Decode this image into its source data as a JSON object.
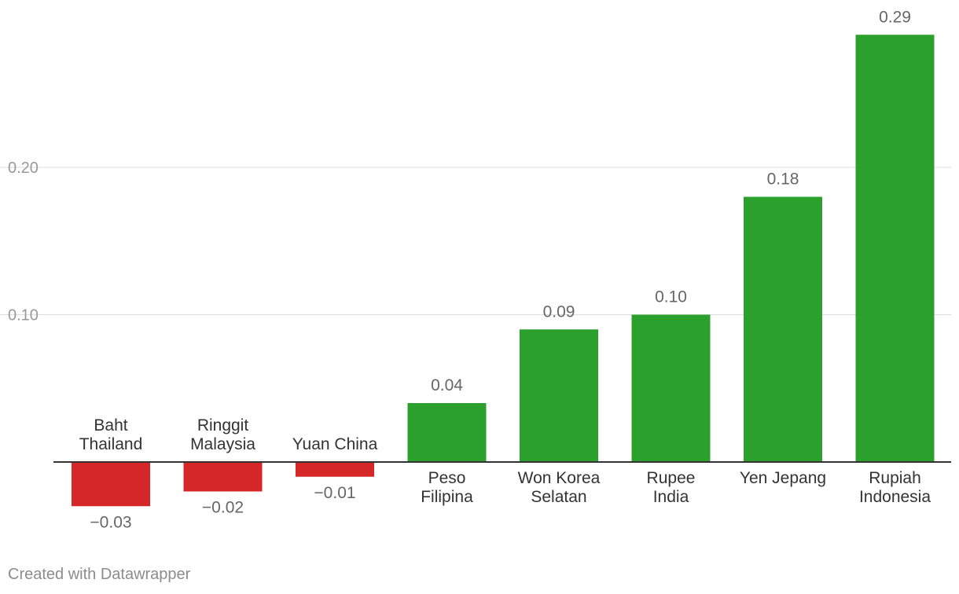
{
  "chart_data": {
    "type": "bar",
    "categories": [
      [
        "Baht",
        "Thailand"
      ],
      [
        "Ringgit",
        "Malaysia"
      ],
      [
        "Yuan China"
      ],
      [
        "Peso",
        "Filipina"
      ],
      [
        "Won Korea",
        "Selatan"
      ],
      [
        "Rupee",
        "India"
      ],
      [
        "Yen Jepang"
      ],
      [
        "Rupiah",
        "Indonesia"
      ]
    ],
    "values": [
      -0.03,
      -0.02,
      -0.01,
      0.04,
      0.09,
      0.1,
      0.18,
      0.29
    ],
    "value_labels": [
      "−0.03",
      "−0.02",
      "−0.01",
      "0.04",
      "0.09",
      "0.10",
      "0.18",
      "0.29"
    ],
    "y_ticks": [
      0.1,
      0.2
    ],
    "y_tick_labels": [
      "0.10",
      "0.20"
    ],
    "ylim": [
      -0.03,
      0.29
    ],
    "grid": true,
    "colors": {
      "positive": "#2ca02c",
      "negative": "#d62728",
      "grid": "#dddddd",
      "axis": "#333333",
      "tick_text": "#999999",
      "value_text": "#666666",
      "category_text": "#333333"
    }
  },
  "footer": {
    "credit": "Created with Datawrapper"
  }
}
